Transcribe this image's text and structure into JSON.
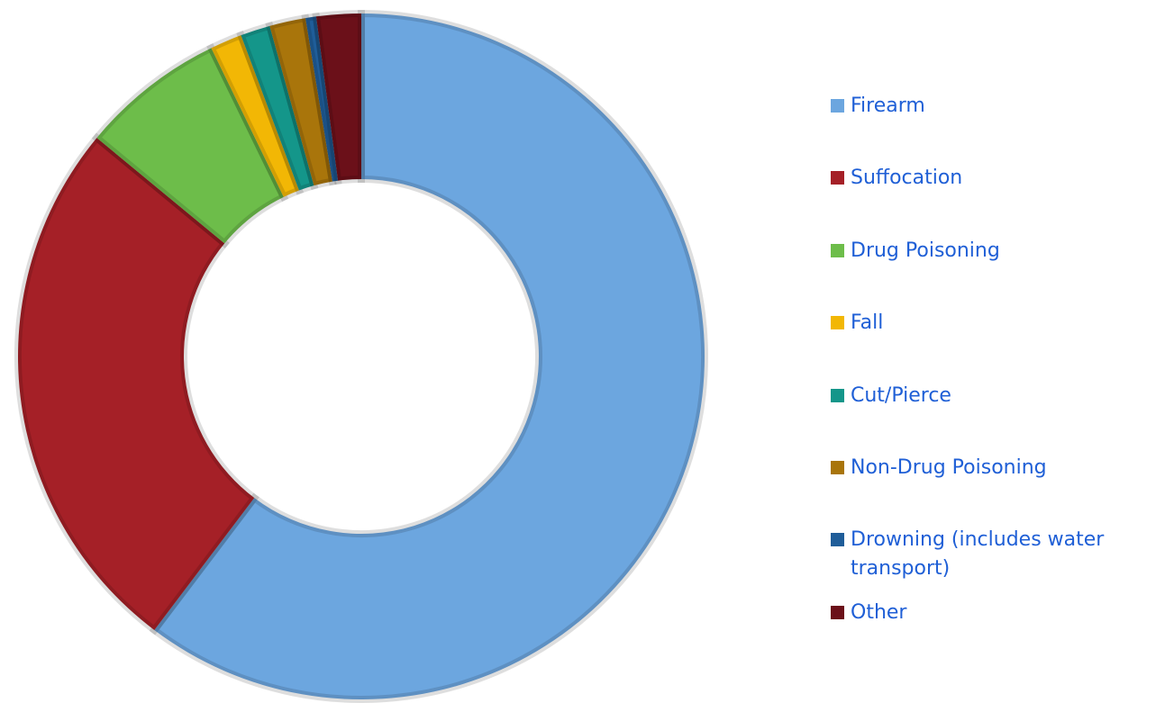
{
  "chart_data": {
    "type": "donut",
    "categories": [
      "Firearm",
      "Suffocation",
      "Drug Poisoning",
      "Fall",
      "Cut/Pierce",
      "Non-Drug Poisoning",
      "Drowning (includes water transport)",
      "Other"
    ],
    "values": [
      60.3,
      25.7,
      6.8,
      1.5,
      1.4,
      1.7,
      0.5,
      2.1
    ],
    "colors": [
      "#6ca6df",
      "#a52027",
      "#6dbd4a",
      "#f2b705",
      "#14968a",
      "#a9750b",
      "#1f5d99",
      "#6b1019"
    ],
    "legend": "right"
  }
}
